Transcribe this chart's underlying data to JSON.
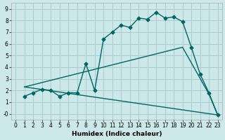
{
  "xlabel": "Humidex (Indice chaleur)",
  "bg_color": "#cce8e8",
  "grid_color": "#aacccc",
  "line_color": "#006666",
  "xlim": [
    -0.5,
    23.5
  ],
  "ylim": [
    -0.5,
    9.5
  ],
  "xticks": [
    0,
    1,
    2,
    3,
    4,
    5,
    6,
    7,
    8,
    9,
    10,
    11,
    12,
    13,
    14,
    15,
    16,
    17,
    18,
    19,
    20,
    21,
    22,
    23
  ],
  "yticks": [
    0,
    1,
    2,
    3,
    4,
    5,
    6,
    7,
    8,
    9
  ],
  "ytick_labels": [
    "-0",
    "1",
    "2",
    "3",
    "4",
    "5",
    "6",
    "7",
    "8",
    "9"
  ],
  "series": [
    {
      "x": [
        1,
        2,
        3,
        4,
        5,
        6,
        7,
        8,
        9,
        10,
        11,
        12,
        13,
        14,
        15,
        16,
        17,
        18,
        19,
        20,
        21,
        22,
        23
      ],
      "y": [
        1.5,
        1.8,
        2.1,
        2.0,
        1.5,
        1.8,
        1.8,
        4.3,
        2.0,
        6.4,
        7.0,
        7.6,
        7.4,
        8.2,
        8.1,
        8.7,
        8.2,
        8.3,
        7.9,
        5.7,
        3.4,
        1.8,
        -0.1
      ],
      "marker": "D",
      "markersize": 2.5,
      "linewidth": 1.0
    },
    {
      "x": [
        1,
        19,
        22,
        23
      ],
      "y": [
        2.3,
        5.7,
        1.7,
        -0.1
      ],
      "marker": null,
      "markersize": 0,
      "linewidth": 1.0
    },
    {
      "x": [
        1,
        23
      ],
      "y": [
        2.3,
        -0.1
      ],
      "marker": null,
      "markersize": 0,
      "linewidth": 1.0
    }
  ]
}
